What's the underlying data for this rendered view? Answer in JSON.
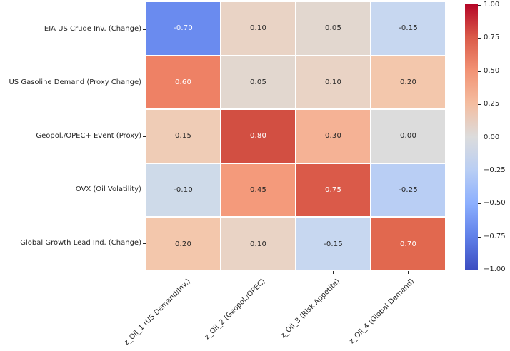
{
  "figure": {
    "background": "#ffffff",
    "tick_color": "#262626",
    "label_color": "#262626"
  },
  "chart_data": {
    "type": "heatmap",
    "colormap": "coolwarm",
    "vmin": -1.0,
    "vmax": 1.0,
    "title": "",
    "xlabel": "",
    "ylabel": "",
    "rows": [
      "EIA US Crude Inv. (Change)",
      "US Gasoline Demand (Proxy Change)",
      "Geopol./OPEC+ Event (Proxy)",
      "OVX (Oil Volatility)",
      "Global Growth Lead Ind. (Change)"
    ],
    "columns": [
      "z_Oil_1 (US Demand/Inv.)",
      "z_Oil_2 (Geopol./OPEC)",
      "z_Oil_3 (Risk Appetite)",
      "z_Oil_4 (Global Demand)"
    ],
    "values": [
      [
        -0.7,
        0.1,
        0.05,
        -0.15
      ],
      [
        0.6,
        0.05,
        0.1,
        0.2
      ],
      [
        0.15,
        0.8,
        0.3,
        0.0
      ],
      [
        -0.1,
        0.45,
        0.75,
        -0.25
      ],
      [
        0.2,
        0.1,
        -0.15,
        0.7
      ]
    ],
    "cell_labels": [
      [
        "-0.70",
        "0.10",
        "0.05",
        "-0.15"
      ],
      [
        "0.60",
        "0.05",
        "0.10",
        "0.20"
      ],
      [
        "0.15",
        "0.80",
        "0.30",
        "0.00"
      ],
      [
        "-0.10",
        "0.45",
        "0.75",
        "-0.25"
      ],
      [
        "0.20",
        "0.10",
        "-0.15",
        "0.70"
      ]
    ],
    "cell_colors": [
      [
        "#6a8bef",
        "#e9d3c5",
        "#e2d7cf",
        "#c7d7f0"
      ],
      [
        "#ee8165",
        "#e2d7cf",
        "#e9d3c5",
        "#f3c7ac"
      ],
      [
        "#efccb6",
        "#d24f42",
        "#f5b295",
        "#dcdcdc"
      ],
      [
        "#cedae9",
        "#f49a7b",
        "#da5a49",
        "#b9cef4"
      ],
      [
        "#f3c7ac",
        "#e9d3c5",
        "#c7d7f0",
        "#e1684f"
      ]
    ],
    "cell_text_colors": [
      [
        "#ffffff",
        "#262626",
        "#262626",
        "#262626"
      ],
      [
        "#ffffff",
        "#262626",
        "#262626",
        "#262626"
      ],
      [
        "#262626",
        "#ffffff",
        "#262626",
        "#262626"
      ],
      [
        "#262626",
        "#262626",
        "#ffffff",
        "#262626"
      ],
      [
        "#262626",
        "#262626",
        "#262626",
        "#ffffff"
      ]
    ],
    "cell_border_color": "#ffffff",
    "legend_position": "right",
    "colorbar": {
      "tick_labels": [
        "1.00",
        "0.75",
        "0.50",
        "0.25",
        "0.00",
        "−0.25",
        "−0.50",
        "−0.75",
        "−1.00"
      ],
      "tick_values": [
        1.0,
        0.75,
        0.5,
        0.25,
        0.0,
        -0.25,
        -0.5,
        -0.75,
        -1.0
      ],
      "gradient_stops": [
        {
          "pos": 0.0,
          "color": "#3b4cc0"
        },
        {
          "pos": 0.125,
          "color": "#5f7fe8"
        },
        {
          "pos": 0.25,
          "color": "#8caffe"
        },
        {
          "pos": 0.375,
          "color": "#b9cef4"
        },
        {
          "pos": 0.5,
          "color": "#dcdcdc"
        },
        {
          "pos": 0.625,
          "color": "#f4bda0"
        },
        {
          "pos": 0.75,
          "color": "#f29274"
        },
        {
          "pos": 0.875,
          "color": "#da5a49"
        },
        {
          "pos": 1.0,
          "color": "#b40426"
        }
      ]
    }
  }
}
